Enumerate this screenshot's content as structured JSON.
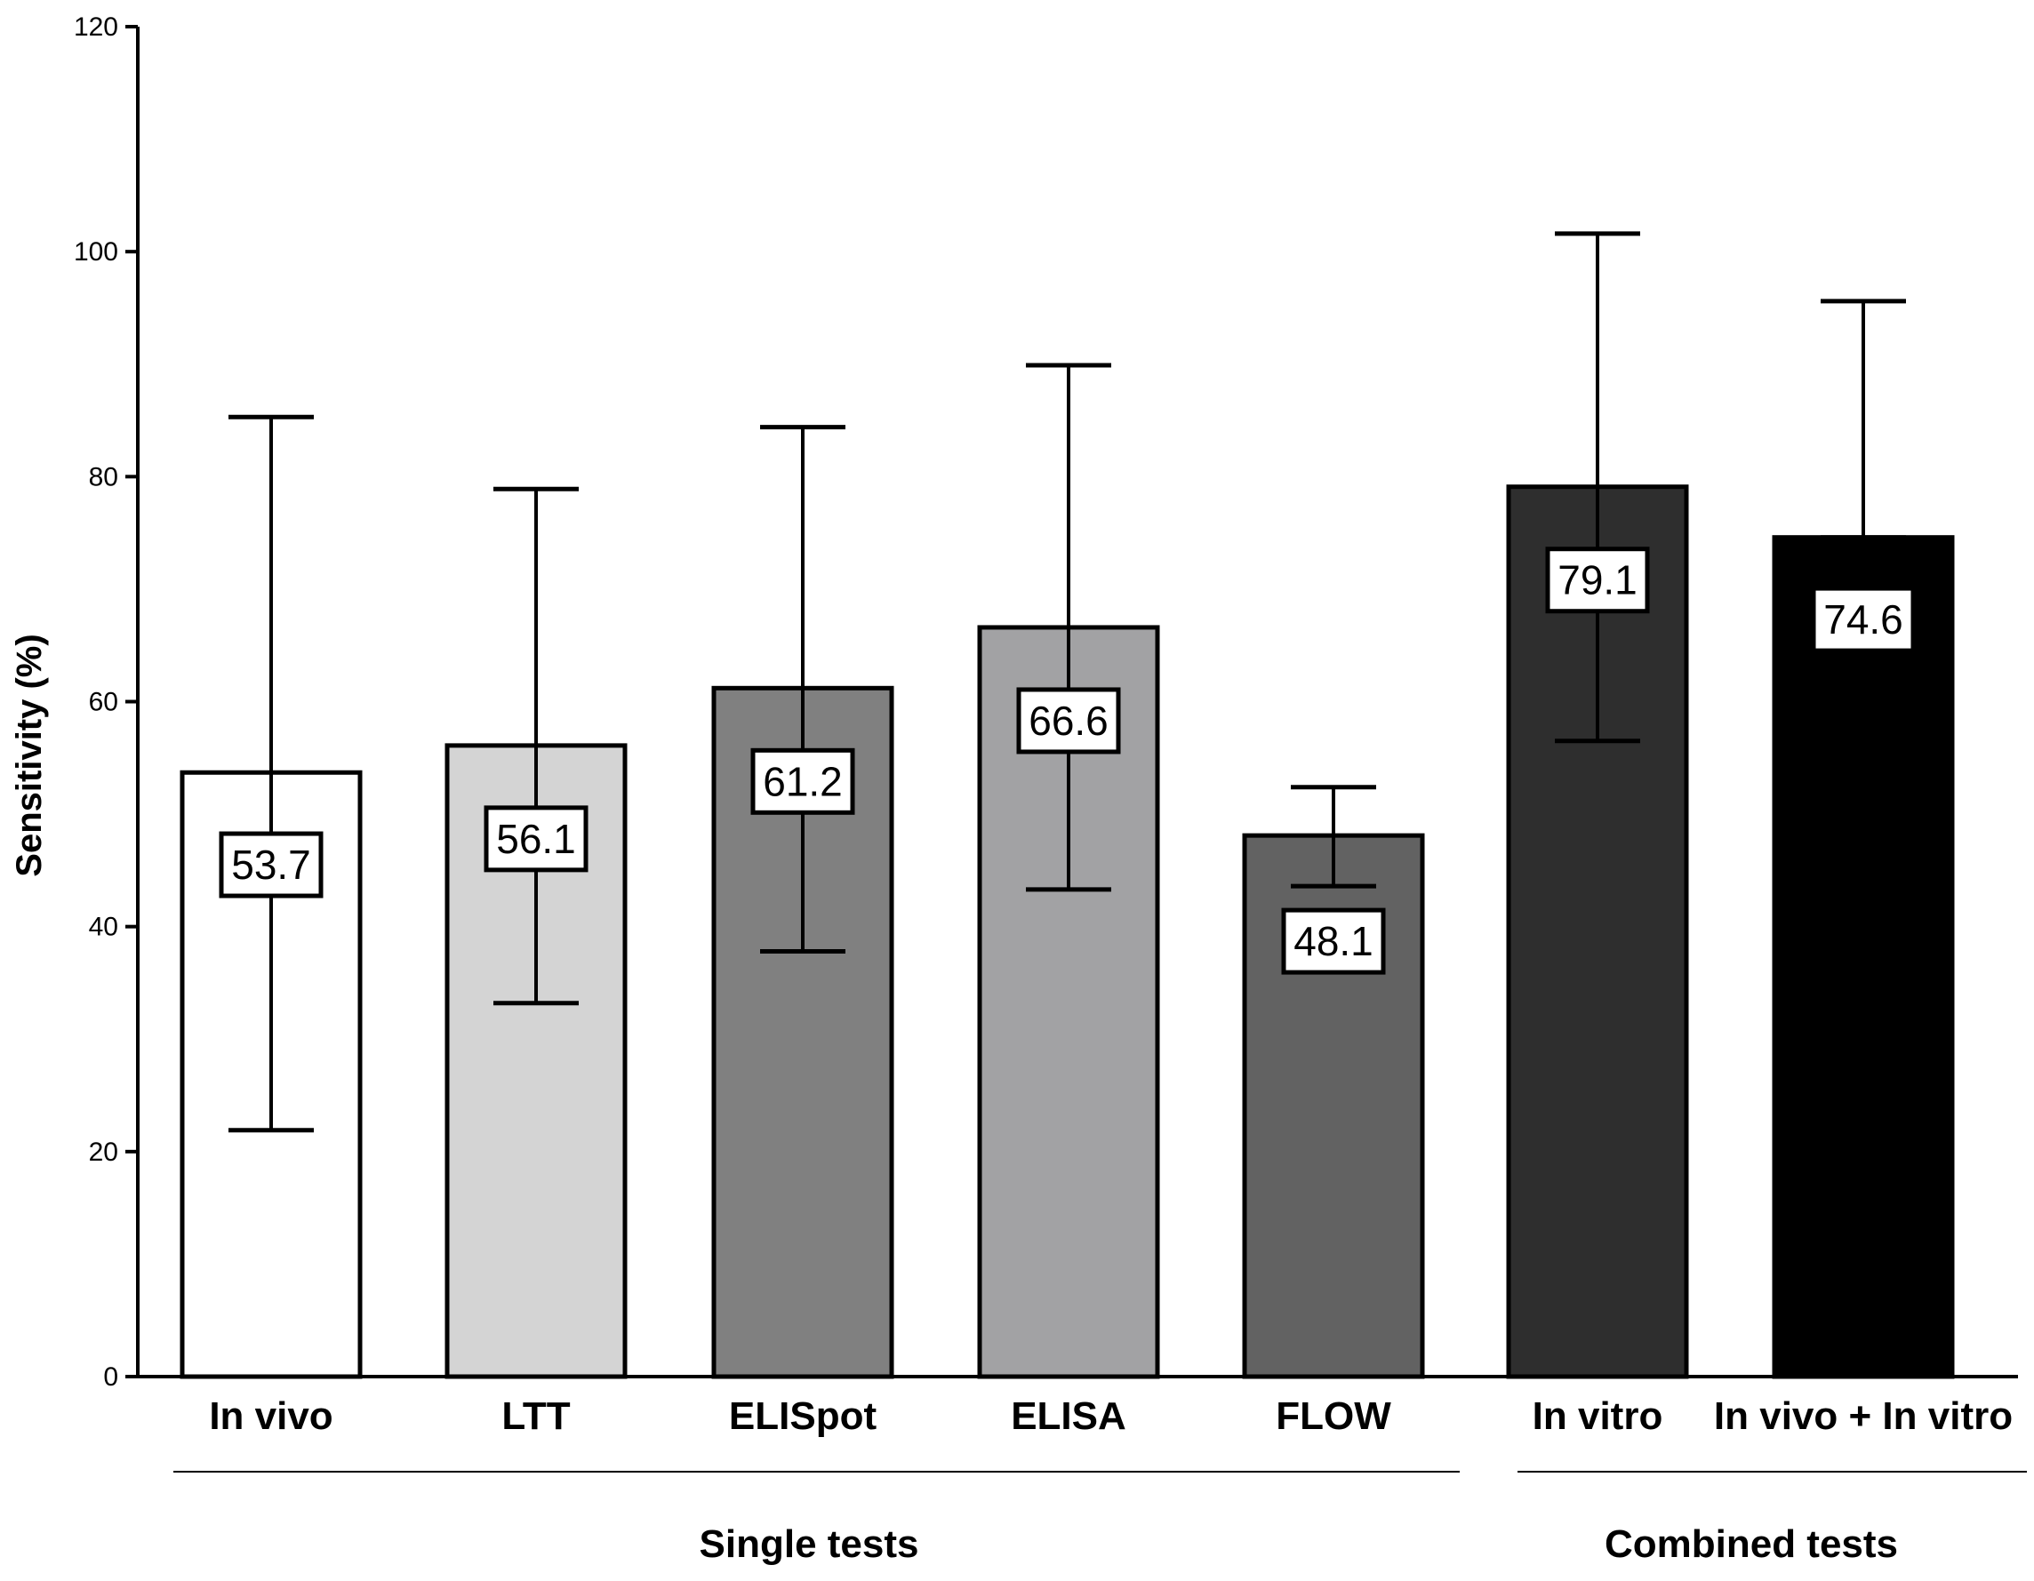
{
  "chart_data": {
    "type": "bar",
    "title": "",
    "xlabel": "",
    "ylabel": "Sensitivity (%)",
    "ylim": [
      0,
      120
    ],
    "yticks": [
      0,
      20,
      40,
      60,
      80,
      100,
      120
    ],
    "grid": false,
    "categories": [
      "In vivo",
      "LTT",
      "ELISpot",
      "ELISA",
      "FLOW",
      "In vitro",
      "In vivo + In vitro"
    ],
    "values": [
      53.7,
      56.1,
      61.2,
      66.6,
      48.1,
      79.1,
      74.6
    ],
    "value_labels": [
      "53.7",
      "56.1",
      "61.2",
      "66.6",
      "48.1",
      "79.1",
      "74.6"
    ],
    "error_upper": [
      85.3,
      78.9,
      84.4,
      89.9,
      52.4,
      101.6,
      95.6
    ],
    "error_lower": [
      21.9,
      33.2,
      37.8,
      43.3,
      43.6,
      56.5,
      74.6
    ],
    "fill_colors": [
      "#ffffff",
      "#d4d4d4",
      "#808080",
      "#a2a2a4",
      "#626262",
      "#2e2e2e",
      "#000000"
    ],
    "groups": [
      {
        "label": "Single tests",
        "categories": [
          "In vivo",
          "LTT",
          "ELISpot",
          "ELISA",
          "FLOW"
        ]
      },
      {
        "label": "Combined tests",
        "categories": [
          "In vitro",
          "In vivo + In vitro"
        ]
      }
    ]
  }
}
